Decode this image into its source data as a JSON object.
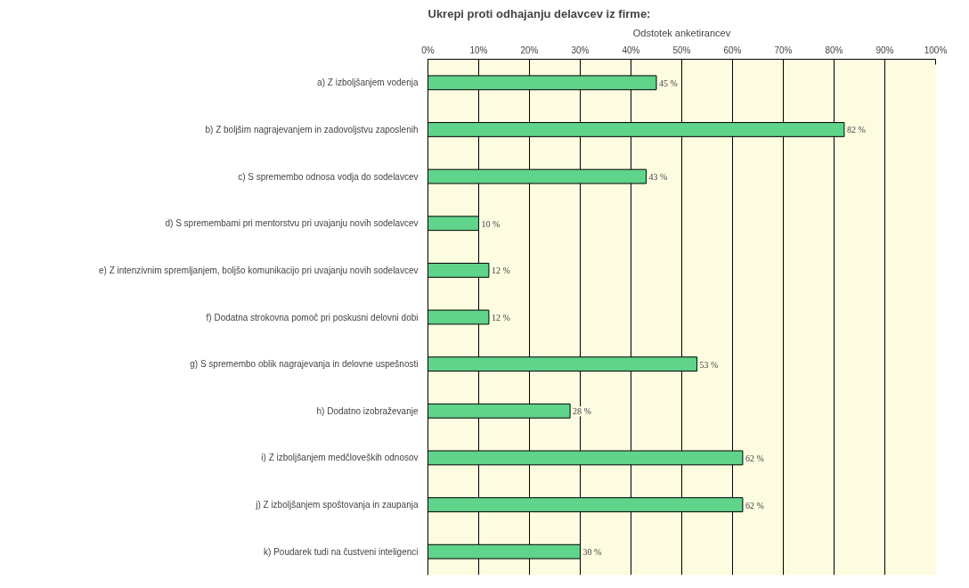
{
  "chart_data": {
    "type": "bar",
    "orientation": "horizontal",
    "title": "Ukrepi proti odhajanju delavcev iz firme:",
    "xlabel": "Odstotek anketirancev",
    "categories": [
      "a) Z izboljšanjem vodenja",
      "b) Z boljšim nagrajevanjem in zadovoljstvu zaposlenih",
      "c) S spremembo odnosa vodja do sodelavcev",
      "d) S spremembami pri mentorstvu pri uvajanju novih sodelavcev",
      "e) Z intenzivnim spremljanjem, boljšo komunikacijo pri uvajanju novih sodelavcev",
      "f) Dodatna strokovna pomoč pri poskusni delovni dobi",
      "g) S spremembo oblik nagrajevanja in delovne uspešnosti",
      "h) Dodatno izobraževanje",
      "i) Z izboljšanjem medčloveških odnosov",
      "j) Z izboljšanjem spoštovanja in zaupanja",
      "k) Poudarek tudi na čustveni inteligenci"
    ],
    "values": [
      45,
      82,
      43,
      10,
      12,
      12,
      53,
      28,
      62,
      62,
      30
    ],
    "value_labels": [
      "45 %",
      "82 %",
      "43 %",
      "10 %",
      "12 %",
      "12 %",
      "53 %",
      "28 %",
      "62 %",
      "62 %",
      "30 %"
    ],
    "color": "#5fd48a",
    "xlim": [
      0,
      100
    ],
    "xticks": [
      {
        "value": 0,
        "label": "0%"
      },
      {
        "value": 10,
        "label": "10%"
      },
      {
        "value": 20,
        "label": "20%"
      },
      {
        "value": 30,
        "label": "30%"
      },
      {
        "value": 40,
        "label": "40%"
      },
      {
        "value": 50,
        "label": "50%"
      },
      {
        "value": 60,
        "label": "60%"
      },
      {
        "value": 70,
        "label": "70%"
      },
      {
        "value": 80,
        "label": "80%"
      },
      {
        "value": 90,
        "label": "90%"
      },
      {
        "value": 100,
        "label": "100%"
      }
    ],
    "grid": "x"
  }
}
